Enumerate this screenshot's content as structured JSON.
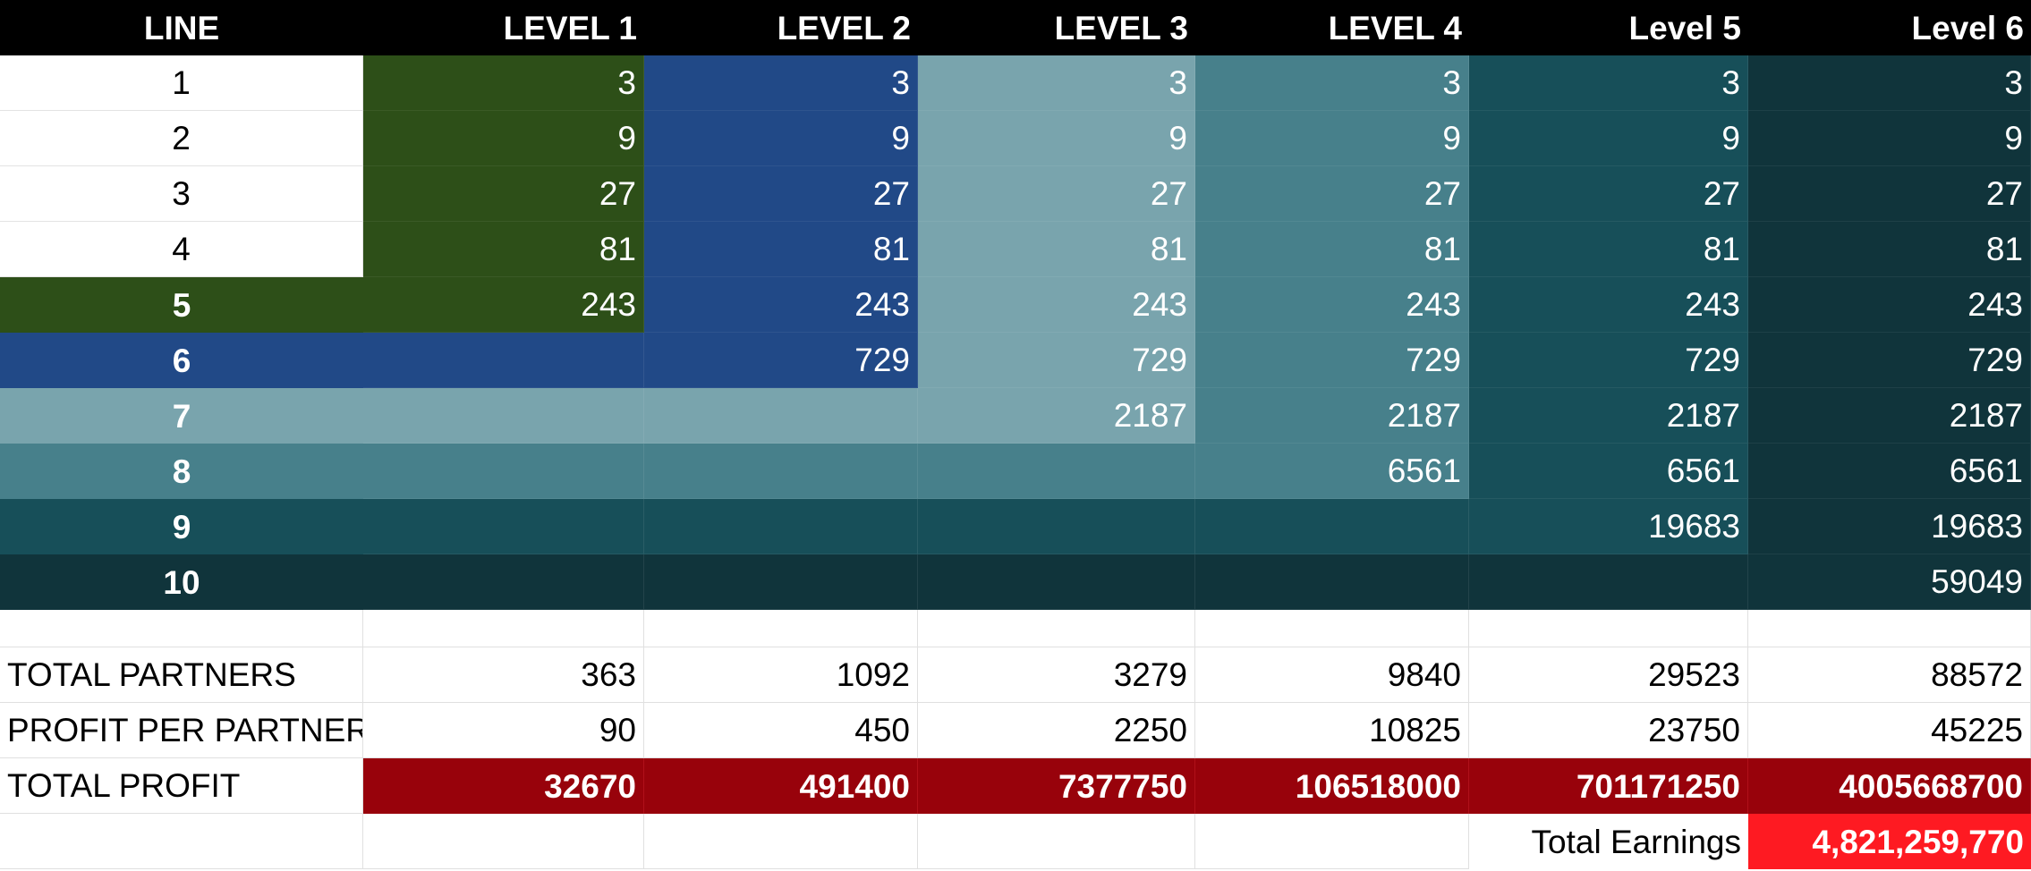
{
  "colors": {
    "header_bg": "#000000",
    "level1": "#2d4f18",
    "level2": "#214987",
    "level3": "#79a4ad",
    "level4": "#47808b",
    "level5": "#174f59",
    "level6": "#10343b",
    "total_profit_bg": "#98020b",
    "total_earnings_bg": "#fe1a22"
  },
  "table": {
    "headers": [
      "LINE",
      "LEVEL 1",
      "LEVEL 2",
      "LEVEL 3",
      "LEVEL 4",
      "Level 5",
      "Level 6"
    ],
    "lines": [
      "1",
      "2",
      "3",
      "4",
      "5",
      "6",
      "7",
      "8",
      "9",
      "10"
    ],
    "values": {
      "1": [
        "3",
        "3",
        "3",
        "3",
        "3",
        "3"
      ],
      "2": [
        "9",
        "9",
        "9",
        "9",
        "9",
        "9"
      ],
      "3": [
        "27",
        "27",
        "27",
        "27",
        "27",
        "27"
      ],
      "4": [
        "81",
        "81",
        "81",
        "81",
        "81",
        "81"
      ],
      "5": [
        "243",
        "243",
        "243",
        "243",
        "243",
        "243"
      ],
      "6": [
        "",
        "729",
        "729",
        "729",
        "729",
        "729"
      ],
      "7": [
        "",
        "",
        "2187",
        "2187",
        "2187",
        "2187"
      ],
      "8": [
        "",
        "",
        "",
        "6561",
        "6561",
        "6561"
      ],
      "9": [
        "",
        "",
        "",
        "",
        "19683",
        "19683"
      ],
      "10": [
        "",
        "",
        "",
        "",
        "",
        "59049"
      ]
    }
  },
  "summary": {
    "total_partners": {
      "label": "TOTAL PARTNERS",
      "values": [
        "363",
        "1092",
        "3279",
        "9840",
        "29523",
        "88572"
      ]
    },
    "profit_per_partner": {
      "label": "PROFIT PER PARTNER",
      "values": [
        "90",
        "450",
        "2250",
        "10825",
        "23750",
        "45225"
      ]
    },
    "total_profit": {
      "label": "TOTAL PROFIT",
      "values": [
        "32670",
        "491400",
        "7377750",
        "106518000",
        "701171250",
        "4005668700"
      ]
    },
    "total_earnings": {
      "label": "Total Earnings",
      "value": "4,821,259,770"
    }
  }
}
